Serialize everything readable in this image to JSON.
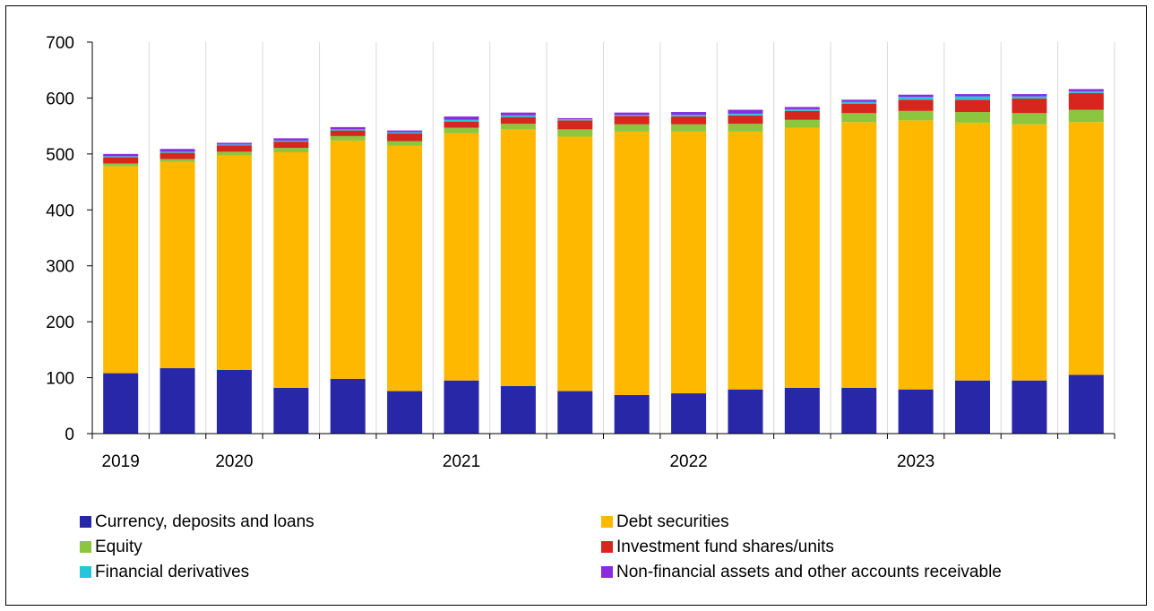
{
  "chart_data": {
    "type": "bar",
    "stacked": true,
    "title": "",
    "xlabel": "",
    "ylabel": "",
    "ylim": [
      0,
      700
    ],
    "y_ticks": [
      0,
      100,
      200,
      300,
      400,
      500,
      600,
      700
    ],
    "grid": "vertical",
    "legend_position": "bottom",
    "x_tick_labels": [
      "2019",
      "2020",
      "2021",
      "2022",
      "2023"
    ],
    "categories": [
      "2019Q3",
      "2019Q4",
      "2020Q1",
      "2020Q2",
      "2020Q3",
      "2020Q4",
      "2021Q1",
      "2021Q2",
      "2021Q3",
      "2021Q4",
      "2022Q1",
      "2022Q2",
      "2022Q3",
      "2022Q4",
      "2023Q1",
      "2023Q2",
      "2023Q3",
      "2023Q4"
    ],
    "series": [
      {
        "name": "Currency, deposits and loans",
        "color": "#2727A8",
        "values": [
          108,
          117,
          114,
          82,
          98,
          76,
          95,
          85,
          76,
          69,
          72,
          79,
          82,
          82,
          79,
          95,
          95,
          105
        ]
      },
      {
        "name": "Debt securities",
        "color": "#FFB800",
        "values": [
          370,
          369,
          383,
          421,
          426,
          439,
          442,
          459,
          455,
          471,
          468,
          461,
          465,
          475,
          481,
          461,
          458,
          452
        ]
      },
      {
        "name": "Equity",
        "color": "#8CC63F",
        "values": [
          5,
          5,
          7,
          8,
          8,
          8,
          10,
          10,
          13,
          13,
          13,
          14,
          14,
          16,
          17,
          19,
          20,
          22
        ]
      },
      {
        "name": "Investment fund shares/units",
        "color": "#D7261E",
        "values": [
          11,
          11,
          11,
          11,
          10,
          14,
          11,
          12,
          16,
          15,
          14,
          15,
          16,
          17,
          20,
          22,
          26,
          30
        ]
      },
      {
        "name": "Financial derivatives",
        "color": "#26C6DA",
        "values": [
          2,
          2,
          2,
          2,
          2,
          2,
          3,
          3,
          2,
          2,
          3,
          3,
          3,
          3,
          5,
          6,
          4,
          3
        ]
      },
      {
        "name": "Non-financial assets and other accounts receivable",
        "color": "#8A2BE2",
        "values": [
          4,
          5,
          3,
          4,
          4,
          3,
          6,
          5,
          2,
          4,
          5,
          7,
          4,
          4,
          4,
          4,
          4,
          4
        ]
      }
    ]
  }
}
